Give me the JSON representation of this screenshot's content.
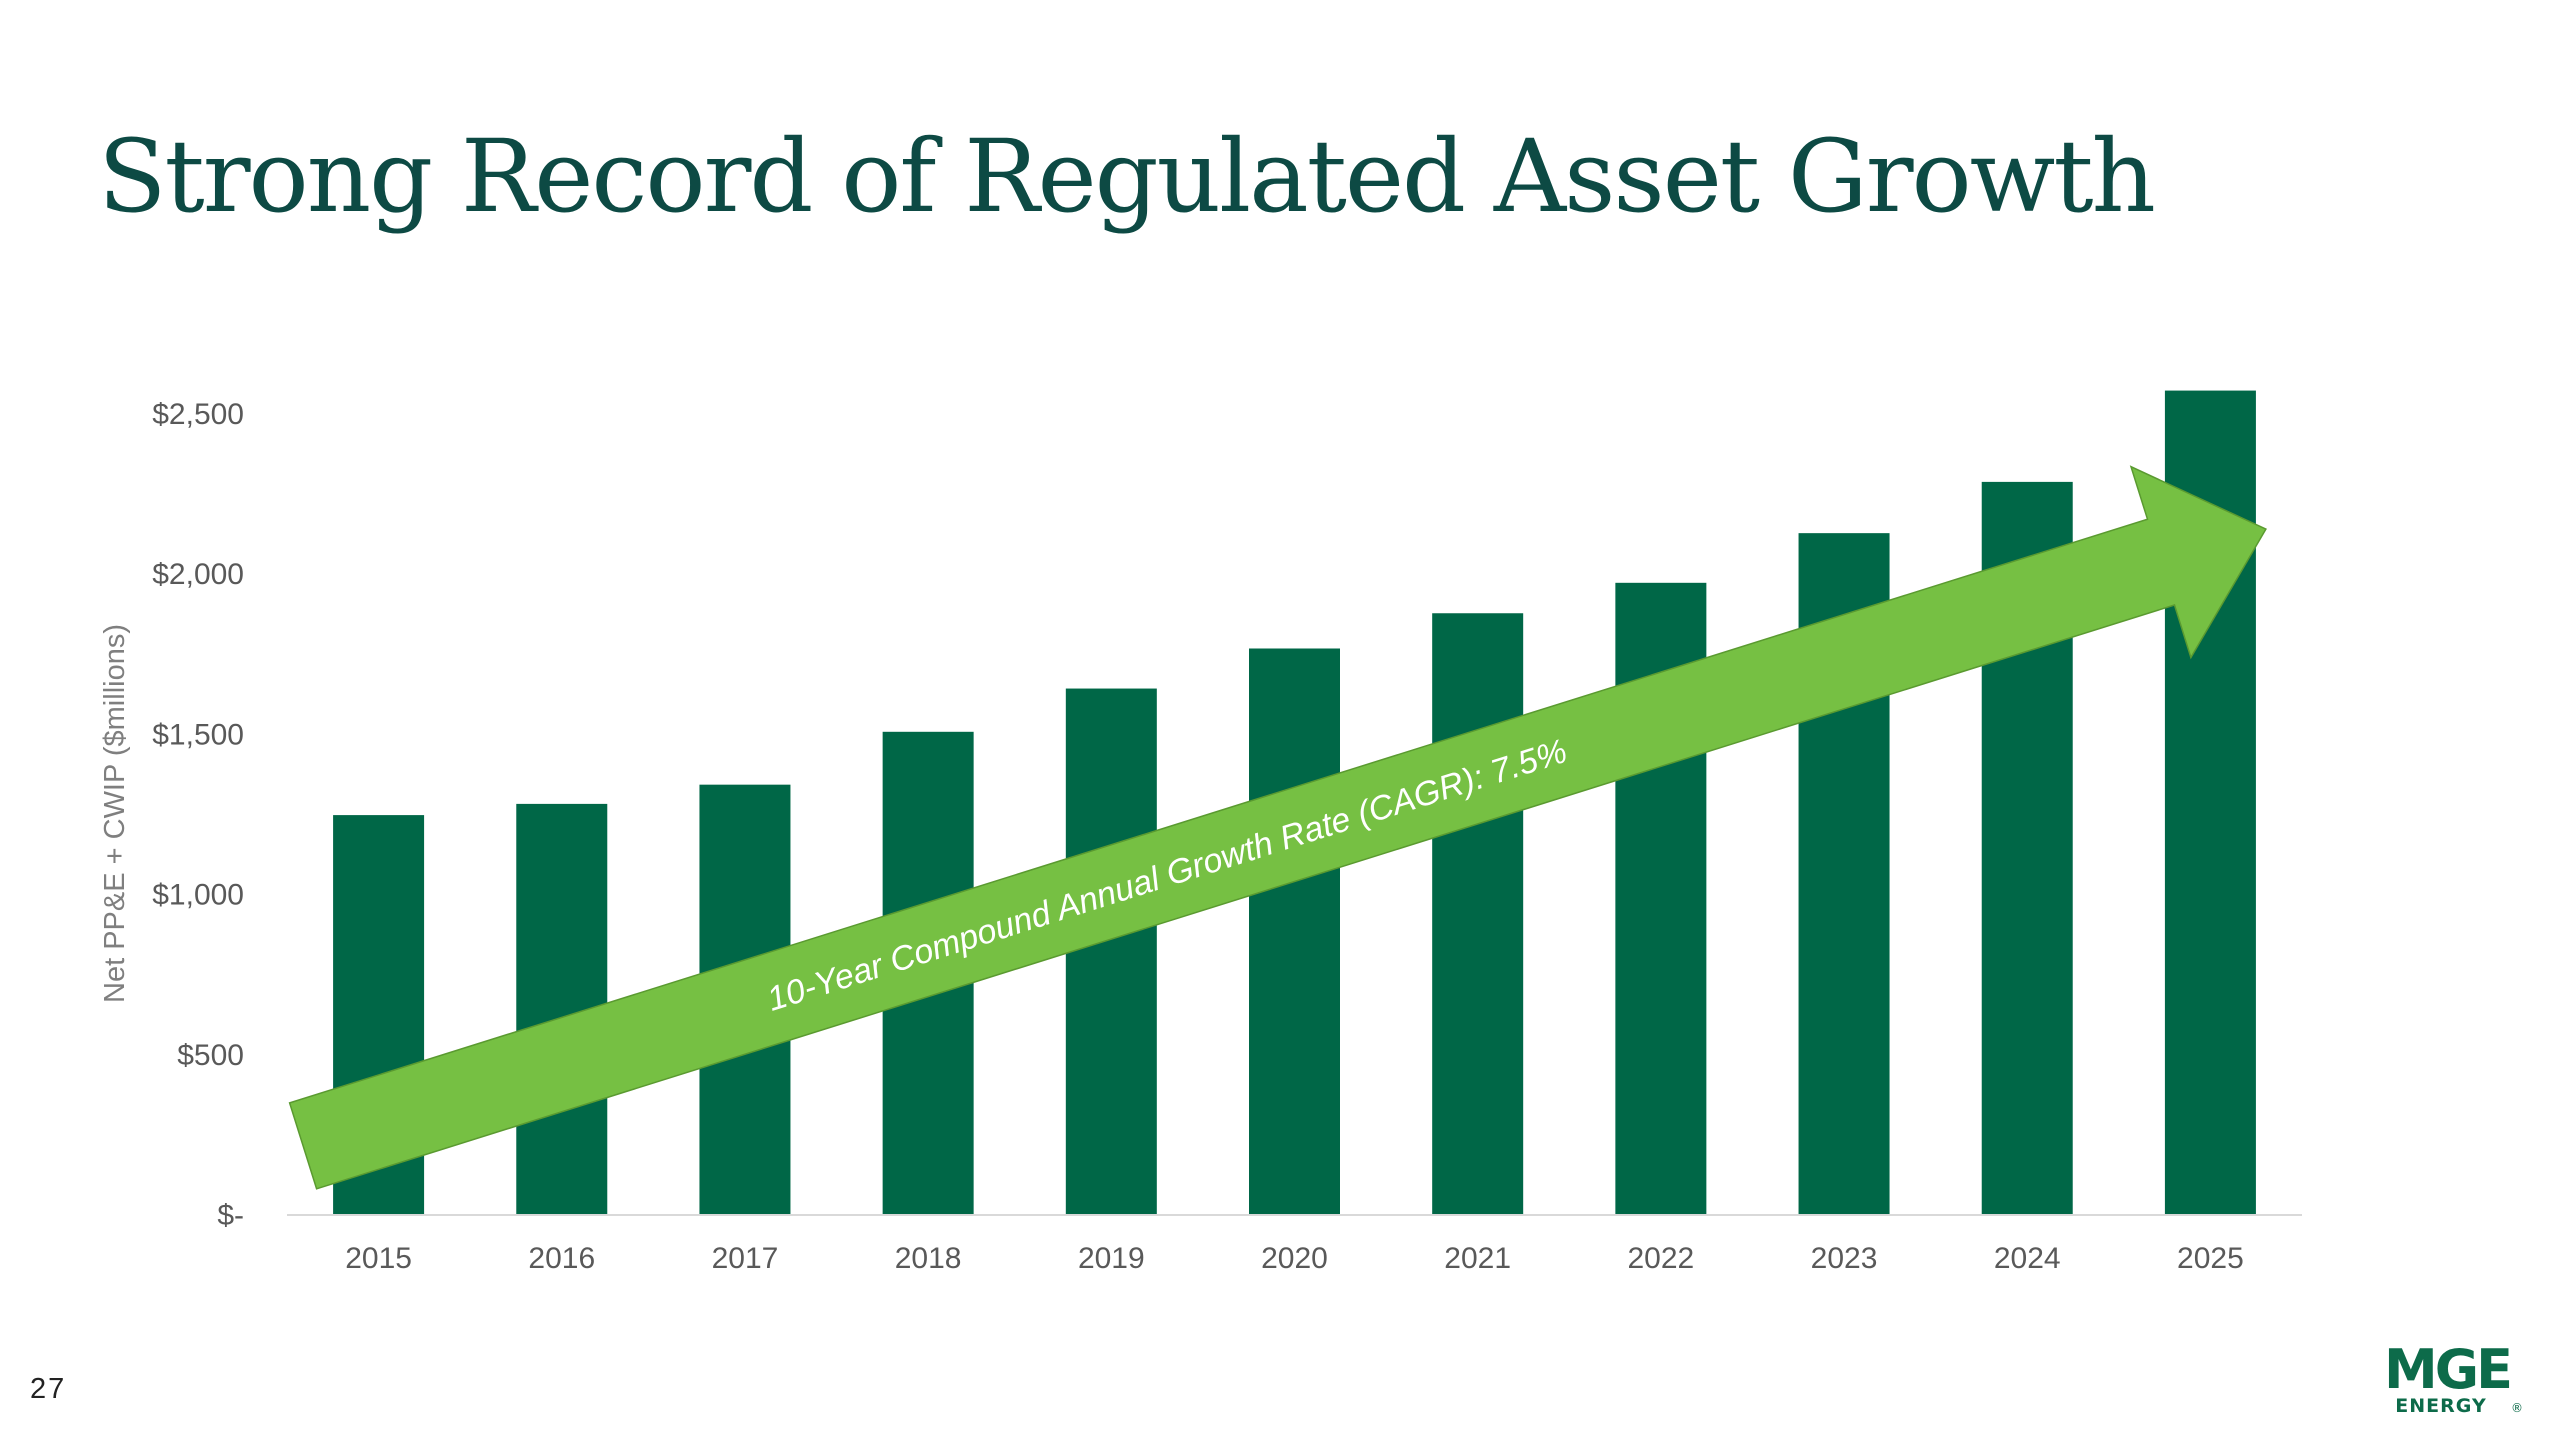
{
  "slide": {
    "title": "Strong Record of Regulated Asset Growth",
    "page_number": "27"
  },
  "logo": {
    "line1": "MGE",
    "line2": "ENERGY",
    "mark": "®",
    "color": "#0d6b4a"
  },
  "colors": {
    "bar": "#006747",
    "arrow": "#76c043",
    "title": "#0d4a44",
    "axis_text": "#595959"
  },
  "chart_data": {
    "type": "bar",
    "title": "",
    "xlabel": "",
    "ylabel": "Net PP&E + CWIP ($millions)",
    "categories": [
      "2015",
      "2016",
      "2017",
      "2018",
      "2019",
      "2020",
      "2021",
      "2022",
      "2023",
      "2024",
      "2025"
    ],
    "values": [
      1245,
      1280,
      1340,
      1505,
      1640,
      1765,
      1875,
      1970,
      2125,
      2285,
      2570
    ],
    "ylim": [
      0,
      2500
    ],
    "yticks": [
      0,
      500,
      1000,
      1500,
      2000,
      2500
    ],
    "ytick_labels": [
      "$-",
      "$500",
      "$1,000",
      "$1,500",
      "$2,000",
      "$2,500"
    ],
    "grid": false,
    "legend": "none",
    "annotation": {
      "text": "10-Year Compound Annual Growth Rate (CAGR): 7.5%",
      "shape": "arrow",
      "from_category": "2015",
      "to_category": "2025",
      "from_value": 400,
      "to_value": 2200
    }
  }
}
